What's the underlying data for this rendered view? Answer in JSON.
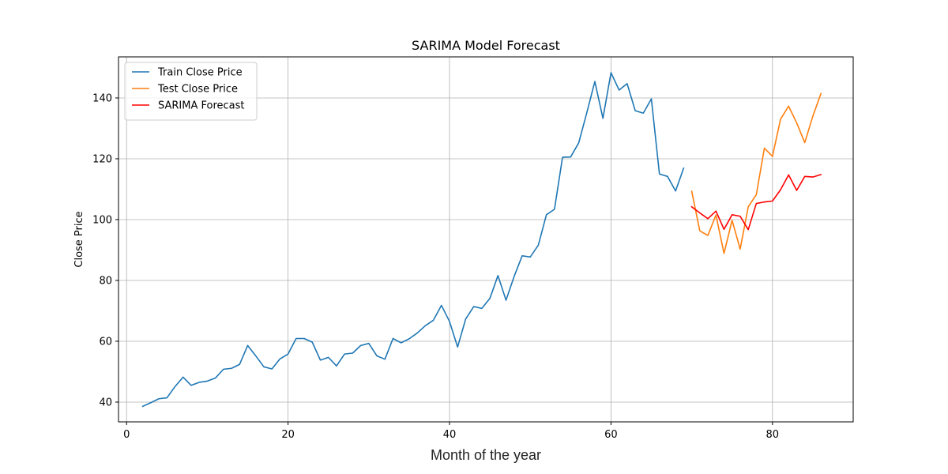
{
  "chart_data": {
    "type": "line",
    "title": "SARIMA Model Forecast",
    "xlabel": "Month of the year",
    "ylabel": "Close Price",
    "xlim": [
      -1,
      90
    ],
    "ylim": [
      33.5,
      153.5
    ],
    "xticks": [
      0,
      20,
      40,
      60,
      80
    ],
    "yticks": [
      40,
      60,
      80,
      100,
      120,
      140
    ],
    "grid": true,
    "legend_position": "upper-left",
    "series": [
      {
        "name": "Train Close Price",
        "color": "#1f77b4",
        "x": [
          2,
          3,
          4,
          5,
          6,
          7,
          8,
          9,
          10,
          11,
          12,
          13,
          14,
          15,
          16,
          17,
          18,
          19,
          20,
          21,
          22,
          23,
          24,
          25,
          26,
          27,
          28,
          29,
          30,
          31,
          32,
          33,
          34,
          35,
          36,
          37,
          38,
          39,
          40,
          41,
          42,
          43,
          44,
          45,
          46,
          47,
          48,
          49,
          50,
          51,
          52,
          53,
          54,
          55,
          56,
          57,
          58,
          59,
          60,
          61,
          62,
          63,
          64,
          65,
          66,
          67,
          68,
          69
        ],
        "y": [
          38.6,
          39.8,
          41.1,
          41.4,
          45.1,
          48.2,
          45.5,
          46.5,
          46.9,
          47.9,
          50.8,
          51.1,
          52.4,
          58.6,
          55.2,
          51.6,
          50.9,
          54.2,
          55.8,
          60.9,
          60.9,
          59.7,
          53.8,
          54.7,
          51.9,
          55.8,
          56.1,
          58.6,
          59.3,
          55.2,
          54.1,
          60.9,
          59.5,
          60.8,
          62.7,
          65.1,
          66.9,
          71.8,
          66.5,
          58.1,
          67.3,
          71.4,
          70.8,
          74.1,
          81.6,
          73.5,
          81.3,
          88.1,
          87.7,
          91.6,
          101.6,
          103.4,
          120.5,
          120.6,
          125.2,
          135.1,
          145.4,
          133.3,
          148.3,
          142.6,
          144.7,
          135.8,
          135.0,
          139.7,
          115.0,
          114.2,
          109.4,
          116.9
        ]
      },
      {
        "name": "Test Close Price",
        "color": "#ff7f0e",
        "x": [
          70,
          71,
          72,
          73,
          74,
          75,
          76,
          77,
          78,
          79,
          80,
          81,
          82,
          83,
          84,
          85,
          86
        ],
        "y": [
          109.3,
          96.3,
          94.8,
          101.5,
          88.9,
          99.8,
          90.3,
          104.2,
          108.2,
          123.5,
          120.8,
          133.0,
          137.3,
          131.8,
          125.3,
          134.0,
          141.4
        ]
      },
      {
        "name": "SARIMA Forecast",
        "color": "#ff0000",
        "x": [
          70,
          71,
          72,
          73,
          74,
          75,
          76,
          77,
          78,
          79,
          80,
          81,
          82,
          83,
          84,
          85,
          86
        ],
        "y": [
          104.2,
          102.2,
          100.3,
          102.8,
          96.8,
          101.6,
          101.1,
          96.7,
          105.3,
          105.8,
          106.1,
          109.8,
          114.7,
          109.6,
          114.2,
          114.0,
          114.8
        ]
      }
    ]
  }
}
